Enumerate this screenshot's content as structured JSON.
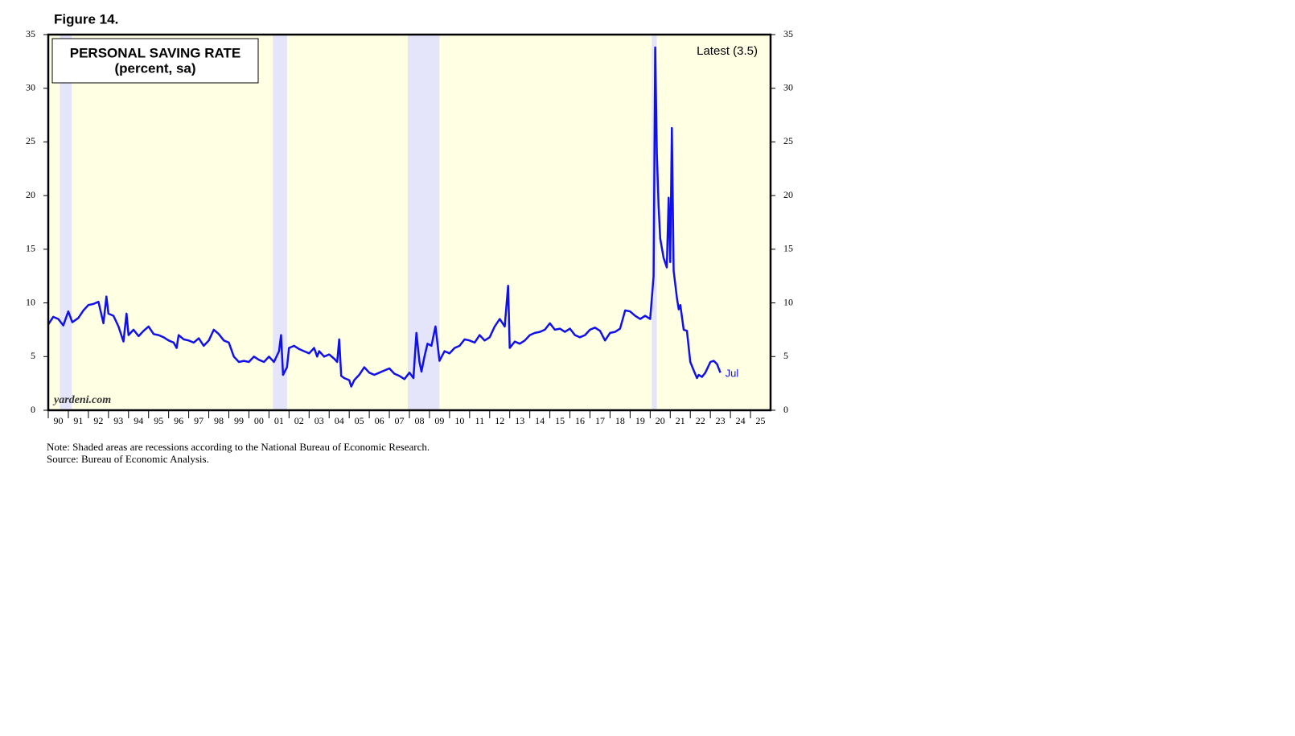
{
  "figure_label": "Figure 14.",
  "chart_data": {
    "type": "line",
    "title": "PERSONAL SAVING RATE",
    "subtitle": "(percent, sa)",
    "watermark": "yardeni.com",
    "latest_label": "Latest (3.5)",
    "end_label": "Jul",
    "recessions": [
      [
        1990.58,
        1991.17
      ],
      [
        2001.2,
        2001.9
      ],
      [
        2007.92,
        2009.5
      ],
      [
        2020.08,
        2020.33
      ]
    ],
    "recession_color": "#e4e4fb",
    "background_color": "#ffffe4",
    "xlim": [
      1990,
      2026
    ],
    "xticks": [
      {
        "value": 1990.5,
        "label": "90"
      },
      {
        "value": 1991.5,
        "label": "91"
      },
      {
        "value": 1992.5,
        "label": "92"
      },
      {
        "value": 1993.5,
        "label": "93"
      },
      {
        "value": 1994.5,
        "label": "94"
      },
      {
        "value": 1995.5,
        "label": "95"
      },
      {
        "value": 1996.5,
        "label": "96"
      },
      {
        "value": 1997.5,
        "label": "97"
      },
      {
        "value": 1998.5,
        "label": "98"
      },
      {
        "value": 1999.5,
        "label": "99"
      },
      {
        "value": 2000.5,
        "label": "00"
      },
      {
        "value": 2001.5,
        "label": "01"
      },
      {
        "value": 2002.5,
        "label": "02"
      },
      {
        "value": 2003.5,
        "label": "03"
      },
      {
        "value": 2004.5,
        "label": "04"
      },
      {
        "value": 2005.5,
        "label": "05"
      },
      {
        "value": 2006.5,
        "label": "06"
      },
      {
        "value": 2007.5,
        "label": "07"
      },
      {
        "value": 2008.5,
        "label": "08"
      },
      {
        "value": 2009.5,
        "label": "09"
      },
      {
        "value": 2010.5,
        "label": "10"
      },
      {
        "value": 2011.5,
        "label": "11"
      },
      {
        "value": 2012.5,
        "label": "12"
      },
      {
        "value": 2013.5,
        "label": "13"
      },
      {
        "value": 2014.5,
        "label": "14"
      },
      {
        "value": 2015.5,
        "label": "15"
      },
      {
        "value": 2016.5,
        "label": "16"
      },
      {
        "value": 2017.5,
        "label": "17"
      },
      {
        "value": 2018.5,
        "label": "18"
      },
      {
        "value": 2019.5,
        "label": "19"
      },
      {
        "value": 2020.5,
        "label": "20"
      },
      {
        "value": 2021.5,
        "label": "21"
      },
      {
        "value": 2022.5,
        "label": "22"
      },
      {
        "value": 2023.5,
        "label": "23"
      },
      {
        "value": 2024.5,
        "label": "24"
      },
      {
        "value": 2025.5,
        "label": "25"
      }
    ],
    "ylim": [
      0,
      35
    ],
    "yticks": [
      0,
      5,
      10,
      15,
      20,
      25,
      30,
      35
    ],
    "x": [
      1990.0,
      1990.25,
      1990.5,
      1990.75,
      1991.0,
      1991.2,
      1991.5,
      1991.75,
      1992.0,
      1992.25,
      1992.5,
      1992.75,
      1992.9,
      1993.0,
      1993.25,
      1993.5,
      1993.75,
      1993.9,
      1994.0,
      1994.25,
      1994.5,
      1994.75,
      1995.0,
      1995.25,
      1995.5,
      1995.75,
      1996.0,
      1996.25,
      1996.4,
      1996.5,
      1996.75,
      1997.0,
      1997.25,
      1997.5,
      1997.75,
      1998.0,
      1998.25,
      1998.5,
      1998.75,
      1999.0,
      1999.25,
      1999.5,
      1999.75,
      2000.0,
      2000.25,
      2000.5,
      2000.75,
      2001.0,
      2001.25,
      2001.5,
      2001.6,
      2001.7,
      2001.9,
      2002.0,
      2002.25,
      2002.5,
      2002.75,
      2003.0,
      2003.25,
      2003.4,
      2003.5,
      2003.75,
      2004.0,
      2004.25,
      2004.4,
      2004.5,
      2004.6,
      2004.75,
      2005.0,
      2005.1,
      2005.25,
      2005.5,
      2005.75,
      2006.0,
      2006.25,
      2006.5,
      2006.75,
      2007.0,
      2007.25,
      2007.5,
      2007.75,
      2008.0,
      2008.2,
      2008.35,
      2008.5,
      2008.6,
      2008.75,
      2008.9,
      2009.1,
      2009.3,
      2009.5,
      2009.75,
      2010.0,
      2010.25,
      2010.5,
      2010.75,
      2011.0,
      2011.25,
      2011.5,
      2011.75,
      2012.0,
      2012.25,
      2012.5,
      2012.75,
      2012.92,
      2013.0,
      2013.25,
      2013.5,
      2013.75,
      2014.0,
      2014.25,
      2014.5,
      2014.75,
      2015.0,
      2015.25,
      2015.5,
      2015.75,
      2016.0,
      2016.25,
      2016.5,
      2016.75,
      2017.0,
      2017.25,
      2017.5,
      2017.75,
      2018.0,
      2018.25,
      2018.5,
      2018.75,
      2019.0,
      2019.25,
      2019.5,
      2019.75,
      2020.0,
      2020.17,
      2020.25,
      2020.33,
      2020.42,
      2020.5,
      2020.67,
      2020.83,
      2020.92,
      2021.0,
      2021.08,
      2021.17,
      2021.33,
      2021.42,
      2021.5,
      2021.67,
      2021.83,
      2022.0,
      2022.17,
      2022.33,
      2022.42,
      2022.58,
      2022.75,
      2023.0,
      2023.17,
      2023.33,
      2023.5
    ],
    "series": [
      {
        "name": "Personal saving rate",
        "color": "#1010ee",
        "values": [
          8.0,
          8.7,
          8.5,
          7.9,
          9.2,
          8.2,
          8.6,
          9.3,
          9.8,
          9.9,
          10.1,
          8.1,
          10.6,
          9.0,
          8.8,
          7.8,
          6.4,
          9.0,
          7.0,
          7.5,
          6.9,
          7.4,
          7.8,
          7.1,
          7.0,
          6.8,
          6.5,
          6.3,
          5.8,
          7.0,
          6.6,
          6.5,
          6.3,
          6.7,
          6.0,
          6.5,
          7.5,
          7.1,
          6.5,
          6.3,
          5.0,
          4.5,
          4.6,
          4.5,
          5.0,
          4.7,
          4.5,
          5.0,
          4.5,
          5.5,
          7.0,
          3.3,
          4.0,
          5.8,
          6.0,
          5.7,
          5.5,
          5.3,
          5.8,
          5.0,
          5.5,
          5.0,
          5.2,
          4.8,
          4.5,
          6.6,
          3.2,
          3.0,
          2.8,
          2.2,
          2.8,
          3.3,
          4.0,
          3.5,
          3.3,
          3.5,
          3.7,
          3.9,
          3.4,
          3.2,
          2.9,
          3.5,
          3.0,
          7.2,
          4.5,
          3.6,
          5.0,
          6.2,
          6.0,
          7.8,
          4.6,
          5.5,
          5.3,
          5.8,
          6.0,
          6.6,
          6.5,
          6.3,
          7.0,
          6.5,
          6.8,
          7.8,
          8.5,
          7.8,
          11.6,
          5.8,
          6.4,
          6.2,
          6.5,
          7.0,
          7.2,
          7.3,
          7.5,
          8.1,
          7.5,
          7.6,
          7.3,
          7.6,
          7.0,
          6.8,
          7.0,
          7.5,
          7.7,
          7.4,
          6.5,
          7.2,
          7.3,
          7.6,
          9.3,
          9.2,
          8.8,
          8.5,
          8.8,
          8.5,
          12.5,
          33.8,
          24.0,
          19.0,
          16.0,
          14.2,
          13.3,
          19.8,
          13.8,
          26.3,
          13.0,
          10.5,
          9.4,
          9.8,
          7.5,
          7.4,
          4.5,
          3.7,
          3.0,
          3.3,
          3.1,
          3.5,
          4.5,
          4.6,
          4.3,
          3.5
        ]
      }
    ]
  },
  "notes": [
    "Note: Shaded areas are recessions according to the National Bureau of Economic Research.",
    "Source: Bureau of Economic Analysis."
  ]
}
